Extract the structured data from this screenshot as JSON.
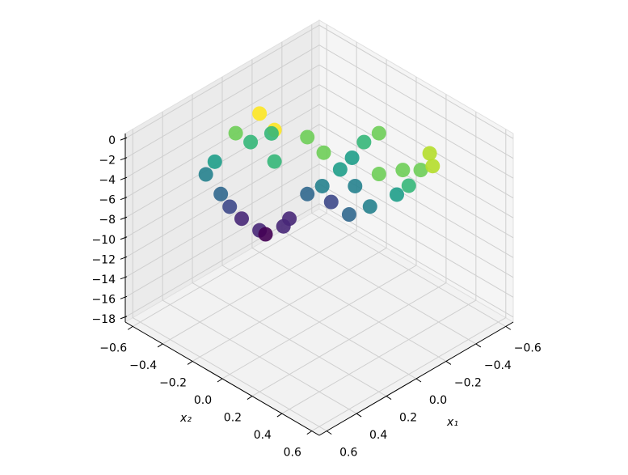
{
  "chart_data": {
    "type": "scatter3d",
    "xlabel": "x₁",
    "ylabel": "x₂",
    "colormap": "viridis",
    "grid": true,
    "xlim": [
      -0.65,
      0.65
    ],
    "ylim": [
      -0.65,
      0.65
    ],
    "zlim": [
      -18.5,
      0.5
    ],
    "xticks": [
      {
        "value": -0.6,
        "label": "−0.6"
      },
      {
        "value": -0.4,
        "label": "−0.4"
      },
      {
        "value": -0.2,
        "label": "−0.2"
      },
      {
        "value": 0,
        "label": "0.0"
      },
      0.2,
      0.4,
      0.6
    ],
    "yticks": [
      {
        "value": -0.6,
        "label": "−0.6"
      },
      {
        "value": -0.4,
        "label": "−0.4"
      },
      {
        "value": -0.2,
        "label": "−0.2"
      },
      {
        "value": 0,
        "label": "0.0"
      },
      0.2,
      0.4,
      0.6
    ],
    "zticks": [
      0,
      {
        "value": -2,
        "label": "−2"
      },
      {
        "value": -4,
        "label": "−4"
      },
      {
        "value": -6,
        "label": "−6"
      },
      {
        "value": -8,
        "label": "−8"
      },
      {
        "value": -10,
        "label": "−10"
      },
      {
        "value": -12,
        "label": "−12"
      },
      {
        "value": -14,
        "label": "−14"
      },
      {
        "value": -16,
        "label": "−16"
      },
      {
        "value": -18,
        "label": "−18"
      }
    ],
    "x": [
      0.0,
      0.13,
      0.05,
      0.25,
      0.33,
      0.31,
      0.3,
      0.1,
      -0.07,
      0.04,
      -0.04,
      0.15,
      -0.12,
      -0.15,
      -0.23,
      -0.37,
      -0.29,
      -0.16,
      -0.07,
      0.0,
      -0.3,
      -0.35,
      -0.21,
      0.28,
      0.22,
      0.08,
      -0.04,
      -0.11,
      0.33,
      0.35,
      -0.01,
      -0.12,
      -0.2,
      -0.33
    ],
    "y": [
      -0.4,
      -0.43,
      -0.25,
      -0.45,
      -0.33,
      -0.21,
      -0.1,
      -0.2,
      -0.04,
      -0.04,
      0.04,
      -0.05,
      0.12,
      0.25,
      0.33,
      0.37,
      0.39,
      0.36,
      0.27,
      0.2,
      0.0,
      0.05,
      0.01,
      -0.08,
      -0.02,
      -0.38,
      -0.36,
      -0.19,
      -0.43,
      -0.25,
      0.01,
      0.02,
      0.4,
      0.43
    ],
    "z": [
      -1.0,
      -2.1,
      -0.9,
      -4.1,
      -5.6,
      -7.2,
      -7.5,
      -3.2,
      -2.4,
      -5.6,
      -6.4,
      -7.2,
      -4.8,
      -2.7,
      -2.3,
      -1.5,
      -2.3,
      -3.9,
      -5.1,
      -5.9,
      -3.0,
      -2.1,
      -3.7,
      -7.9,
      -7.1,
      -3.0,
      -3.0,
      -2.5,
      -4.5,
      -6.0,
      -4.8,
      -4.0,
      -3.0,
      -1.9
    ]
  }
}
